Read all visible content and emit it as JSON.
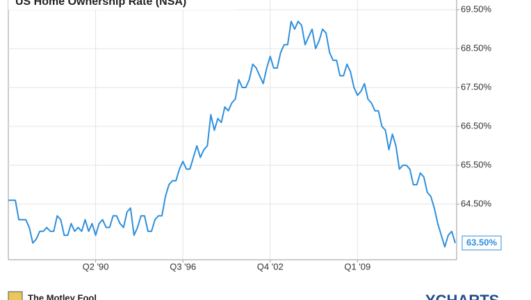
{
  "chart_data": {
    "type": "line",
    "title": "US Home Ownership Rate (NSA)",
    "x": [
      1984,
      1984.25,
      1984.5,
      1984.75,
      1985,
      1985.25,
      1985.5,
      1985.75,
      1986,
      1986.25,
      1986.5,
      1986.75,
      1987,
      1987.25,
      1987.5,
      1987.75,
      1988,
      1988.25,
      1988.5,
      1988.75,
      1989,
      1989.25,
      1989.5,
      1989.75,
      1990,
      1990.25,
      1990.5,
      1990.75,
      1991,
      1991.25,
      1991.5,
      1991.75,
      1992,
      1992.25,
      1992.5,
      1992.75,
      1993,
      1993.25,
      1993.5,
      1993.75,
      1994,
      1994.25,
      1994.5,
      1994.75,
      1995,
      1995.25,
      1995.5,
      1995.75,
      1996,
      1996.25,
      1996.5,
      1996.75,
      1997,
      1997.25,
      1997.5,
      1997.75,
      1998,
      1998.25,
      1998.5,
      1998.75,
      1999,
      1999.25,
      1999.5,
      1999.75,
      2000,
      2000.25,
      2000.5,
      2000.75,
      2001,
      2001.25,
      2001.5,
      2001.75,
      2002,
      2002.25,
      2002.5,
      2002.75,
      2003,
      2003.25,
      2003.5,
      2003.75,
      2004,
      2004.25,
      2004.5,
      2004.75,
      2005,
      2005.25,
      2005.5,
      2005.75,
      2006,
      2006.25,
      2006.5,
      2006.75,
      2007,
      2007.25,
      2007.5,
      2007.75,
      2008,
      2008.25,
      2008.5,
      2008.75,
      2009,
      2009.25,
      2009.5,
      2009.75,
      2010,
      2010.25,
      2010.5,
      2010.75,
      2011,
      2011.25,
      2011.5,
      2011.75,
      2012,
      2012.25,
      2012.5,
      2012.75,
      2013,
      2013.25,
      2013.5,
      2013.75,
      2014,
      2014.25,
      2014.5,
      2014.75,
      2015,
      2015.25,
      2015.5,
      2015.75,
      2016
    ],
    "series": [
      {
        "name": "US Home Ownership Rate (NSA)",
        "color": "#2e8fdc",
        "values": [
          64.6,
          64.6,
          64.6,
          64.1,
          64.1,
          64.1,
          63.9,
          63.5,
          63.6,
          63.8,
          63.8,
          63.9,
          63.8,
          63.8,
          64.2,
          64.1,
          63.7,
          63.7,
          64.0,
          63.8,
          63.9,
          63.8,
          64.1,
          63.8,
          64.0,
          63.7,
          64.0,
          64.1,
          63.9,
          63.9,
          64.2,
          64.2,
          64.0,
          63.9,
          64.3,
          64.4,
          63.7,
          63.9,
          64.2,
          64.2,
          63.8,
          63.8,
          64.1,
          64.2,
          64.2,
          64.7,
          65.0,
          65.1,
          65.1,
          65.4,
          65.6,
          65.4,
          65.4,
          65.7,
          66.0,
          65.7,
          65.9,
          66.0,
          66.8,
          66.4,
          66.7,
          66.6,
          67.0,
          66.9,
          67.1,
          67.2,
          67.7,
          67.5,
          67.5,
          67.7,
          68.1,
          68.0,
          67.8,
          67.6,
          68.0,
          68.3,
          68.0,
          68.0,
          68.4,
          68.6,
          68.6,
          69.2,
          69.0,
          69.2,
          69.1,
          68.6,
          68.8,
          69.0,
          68.5,
          68.7,
          69.0,
          68.9,
          68.4,
          68.2,
          68.2,
          67.8,
          67.8,
          68.1,
          67.9,
          67.5,
          67.3,
          67.4,
          67.6,
          67.2,
          67.1,
          66.9,
          66.9,
          66.5,
          66.4,
          65.9,
          66.3,
          66.0,
          65.4,
          65.5,
          65.5,
          65.4,
          65.0,
          65.0,
          65.3,
          65.2,
          64.8,
          64.7,
          64.4,
          64.0,
          63.7,
          63.4,
          63.7,
          63.8,
          63.5
        ],
        "value_labels": [
          null,
          null,
          null,
          null,
          null,
          null,
          null,
          null,
          null,
          null,
          null,
          null,
          null,
          null,
          null,
          null,
          null,
          null,
          null,
          null,
          null,
          null,
          null,
          null,
          null,
          null,
          null,
          null,
          null,
          null,
          null,
          null,
          null,
          null,
          null,
          null,
          null,
          null,
          null,
          null,
          null,
          null,
          null,
          null,
          null,
          null,
          null,
          null,
          null,
          null,
          null,
          null,
          null,
          null,
          null,
          null,
          null,
          null,
          null,
          null,
          null,
          null,
          null,
          null,
          null,
          null,
          null,
          null,
          null,
          null,
          null,
          null,
          null,
          null,
          null,
          null,
          null,
          null,
          null,
          null,
          null,
          null,
          null,
          null,
          null,
          null,
          null,
          null,
          null,
          null,
          null,
          null,
          null,
          null,
          null,
          null,
          null,
          null,
          null,
          null,
          null,
          null,
          null,
          null,
          null,
          null,
          null,
          null,
          null,
          null,
          null,
          null,
          null,
          null,
          null,
          null,
          null,
          null,
          null,
          null,
          null,
          null,
          null,
          null,
          null,
          null,
          null,
          null,
          "63.50%"
        ]
      }
    ],
    "xlim": [
      1984,
      2016.1
    ],
    "xticks": [
      {
        "value": 1990.25,
        "label": "Q2 '90"
      },
      {
        "value": 1996.5,
        "label": "Q3 '96"
      },
      {
        "value": 2002.75,
        "label": "Q4 '02"
      },
      {
        "value": 2009,
        "label": "Q1 '09"
      }
    ],
    "ylim": [
      63.07,
      69.75
    ],
    "yticks": [
      {
        "value": 64.5,
        "label": "64.50%"
      },
      {
        "value": 65.5,
        "label": "65.50%"
      },
      {
        "value": 66.5,
        "label": "66.50%"
      },
      {
        "value": 67.5,
        "label": "67.50%"
      },
      {
        "value": 68.5,
        "label": "68.50%"
      },
      {
        "value": 69.5,
        "label": "69.50%"
      }
    ],
    "grid": true,
    "footer_left": "The Motley Fool",
    "footer_right": "YCHARTS"
  }
}
